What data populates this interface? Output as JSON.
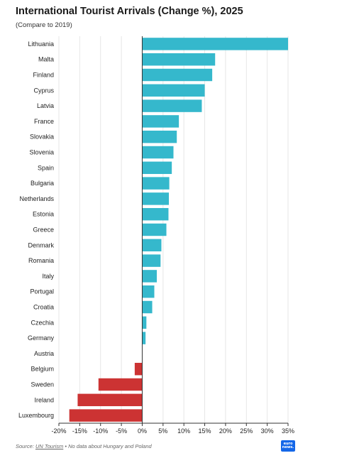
{
  "title": "International Tourist Arrivals (Change %), 2025",
  "subtitle": "(Compare to 2019)",
  "footer": {
    "source_prefix": "Source:",
    "source_link": "UN Tourism",
    "note": "• No data about Hungary and Poland"
  },
  "logo": {
    "line1": "euro",
    "line2": "news."
  },
  "colors": {
    "positive": "#35b8cc",
    "negative": "#cc3333",
    "grid": "#e6e6e6",
    "zero_line": "#333333"
  },
  "chart_data": {
    "type": "bar",
    "orientation": "horizontal",
    "categories": [
      "Lithuania",
      "Malta",
      "Finland",
      "Cyprus",
      "Latvia",
      "France",
      "Slovakia",
      "Slovenia",
      "Spain",
      "Bulgaria",
      "Netherlands",
      "Estonia",
      "Greece",
      "Denmark",
      "Romania",
      "Italy",
      "Portugal",
      "Croatia",
      "Czechia",
      "Germany",
      "Austria",
      "Belgium",
      "Sweden",
      "Ireland",
      "Luxembourg"
    ],
    "values": [
      35,
      17.5,
      16.8,
      15,
      14.3,
      8.8,
      8.3,
      7.5,
      7.1,
      6.5,
      6.4,
      6.3,
      5.8,
      4.6,
      4.4,
      3.5,
      2.9,
      2.4,
      1,
      0.8,
      0,
      -1.8,
      -10.5,
      -15.5,
      -17.5
    ],
    "xlim": [
      -20,
      35
    ],
    "xticks": [
      -20,
      -15,
      -10,
      -5,
      0,
      5,
      10,
      15,
      20,
      25,
      30,
      35
    ],
    "xtick_labels": [
      "-20%",
      "-15%",
      "-10%",
      "-5%",
      "0%",
      "5%",
      "10%",
      "15%",
      "20%",
      "25%",
      "30%",
      "35%"
    ],
    "grid": true
  }
}
